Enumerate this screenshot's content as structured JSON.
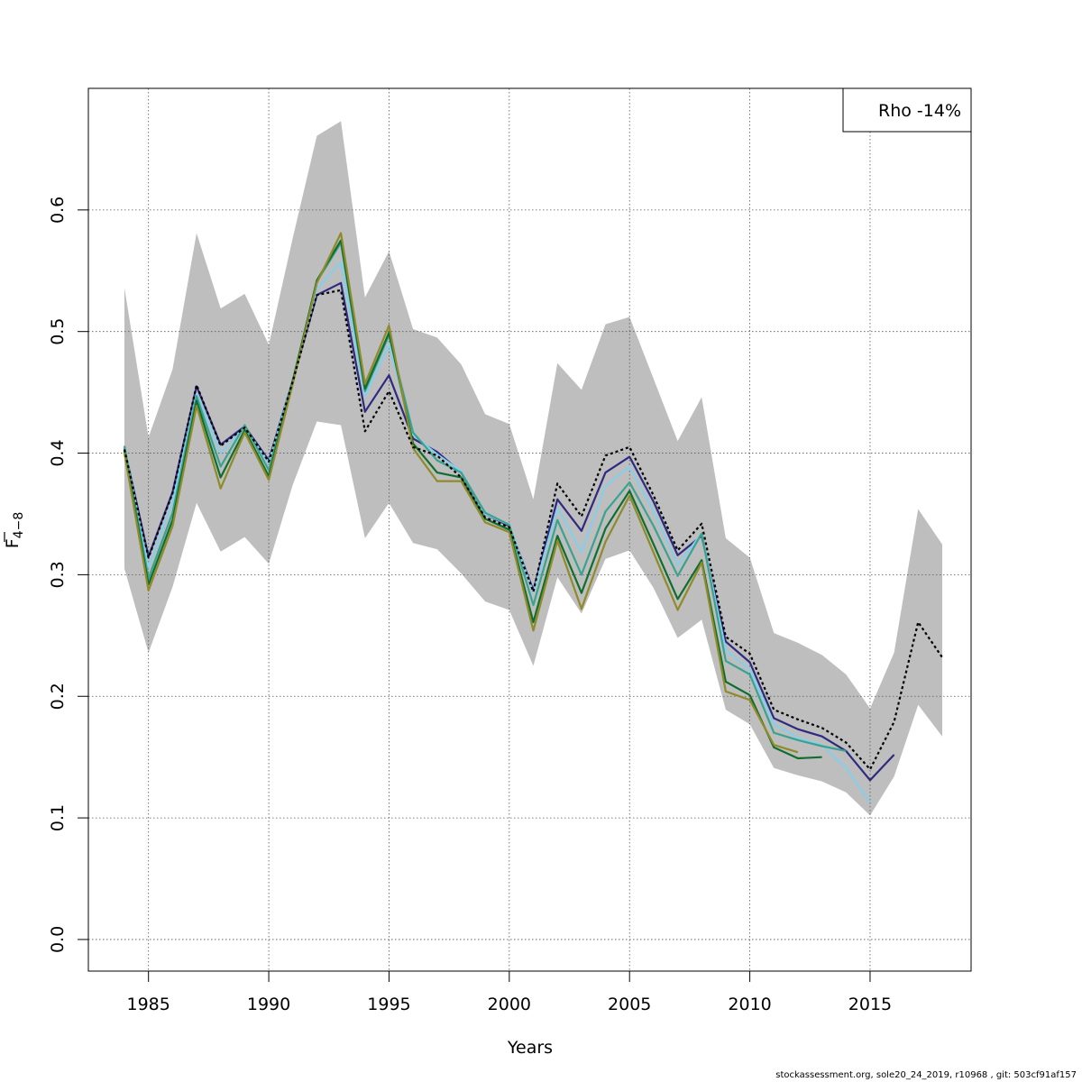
{
  "chart_data": {
    "type": "line",
    "xlabel": "Years",
    "ylabel_main": "F",
    "ylabel_sub": "4−8",
    "xlim": [
      1982.5,
      2019.2
    ],
    "ylim": [
      -0.026,
      0.7
    ],
    "x_ticks": [
      1985,
      1990,
      1995,
      2000,
      2005,
      2010,
      2015
    ],
    "y_ticks": [
      0.0,
      0.1,
      0.2,
      0.3,
      0.4,
      0.5,
      0.6
    ],
    "y_tick_labels": [
      "0.0",
      "0.1",
      "0.2",
      "0.3",
      "0.4",
      "0.5",
      "0.6"
    ],
    "grid": true,
    "legend_text": "Rho -14%",
    "legend_position": "top-right",
    "ci_band": {
      "color": "#bebebe",
      "x": [
        1984,
        1985,
        1986,
        1987,
        1988,
        1989,
        1990,
        1991,
        1992,
        1993,
        1994,
        1995,
        1996,
        1997,
        1998,
        1999,
        2000,
        2001,
        2002,
        2003,
        2004,
        2005,
        2006,
        2007,
        2008,
        2009,
        2010,
        2011,
        2012,
        2013,
        2014,
        2015,
        2016,
        2017,
        2018
      ],
      "upper": [
        0.536,
        0.413,
        0.469,
        0.581,
        0.519,
        0.531,
        0.489,
        0.577,
        0.661,
        0.673,
        0.528,
        0.566,
        0.502,
        0.495,
        0.473,
        0.432,
        0.424,
        0.362,
        0.474,
        0.452,
        0.506,
        0.512,
        0.461,
        0.41,
        0.446,
        0.33,
        0.314,
        0.252,
        0.244,
        0.234,
        0.218,
        0.19,
        0.236,
        0.354,
        0.325
      ],
      "lower": [
        0.305,
        0.236,
        0.29,
        0.359,
        0.319,
        0.331,
        0.309,
        0.374,
        0.426,
        0.423,
        0.33,
        0.359,
        0.326,
        0.321,
        0.301,
        0.278,
        0.271,
        0.225,
        0.298,
        0.268,
        0.313,
        0.32,
        0.289,
        0.248,
        0.263,
        0.189,
        0.177,
        0.141,
        0.135,
        0.13,
        0.121,
        0.102,
        0.134,
        0.193,
        0.167
      ]
    },
    "series": [
      {
        "color": "#000000",
        "dashed": true,
        "start": 1984,
        "values": [
          0.403,
          0.314,
          0.367,
          0.456,
          0.406,
          0.421,
          0.393,
          0.459,
          0.53,
          0.534,
          0.418,
          0.451,
          0.405,
          0.398,
          0.38,
          0.347,
          0.339,
          0.286,
          0.375,
          0.348,
          0.398,
          0.405,
          0.365,
          0.32,
          0.342,
          0.249,
          0.235,
          0.189,
          0.181,
          0.174,
          0.162,
          0.14,
          0.179,
          0.261,
          0.232
        ]
      },
      {
        "color": "#2e2a80",
        "dashed": false,
        "start": 1984,
        "values": [
          0.404,
          0.315,
          0.368,
          0.455,
          0.407,
          0.422,
          0.394,
          0.46,
          0.53,
          0.54,
          0.434,
          0.464,
          0.412,
          0.401,
          0.384,
          0.35,
          0.34,
          0.287,
          0.362,
          0.336,
          0.384,
          0.397,
          0.36,
          0.316,
          0.332,
          0.245,
          0.228,
          0.182,
          0.173,
          0.167,
          0.155,
          0.131,
          0.152
        ]
      },
      {
        "color": "#87ceeb",
        "dashed": false,
        "start": 1984,
        "values": [
          0.405,
          0.306,
          0.36,
          0.449,
          0.4,
          0.421,
          0.392,
          0.46,
          0.535,
          0.557,
          0.447,
          0.489,
          0.415,
          0.399,
          0.385,
          0.35,
          0.341,
          0.285,
          0.355,
          0.319,
          0.373,
          0.389,
          0.352,
          0.308,
          0.334,
          0.238,
          0.222,
          0.177,
          0.166,
          0.16,
          0.141,
          0.113
        ]
      },
      {
        "color": "#3aa38f",
        "dashed": false,
        "start": 1984,
        "values": [
          0.406,
          0.297,
          0.351,
          0.447,
          0.389,
          0.423,
          0.386,
          0.46,
          0.541,
          0.573,
          0.451,
          0.497,
          0.417,
          0.394,
          0.384,
          0.351,
          0.341,
          0.275,
          0.345,
          0.3,
          0.352,
          0.376,
          0.34,
          0.299,
          0.334,
          0.229,
          0.218,
          0.17,
          0.164,
          0.159,
          0.155
        ]
      },
      {
        "color": "#0f6e2e",
        "dashed": false,
        "start": 1984,
        "values": [
          0.402,
          0.292,
          0.345,
          0.443,
          0.38,
          0.419,
          0.381,
          0.459,
          0.542,
          0.575,
          0.453,
          0.499,
          0.408,
          0.384,
          0.38,
          0.346,
          0.337,
          0.261,
          0.332,
          0.285,
          0.338,
          0.369,
          0.325,
          0.28,
          0.312,
          0.212,
          0.201,
          0.158,
          0.149,
          0.15
        ]
      },
      {
        "color": "#8f8a2a",
        "dashed": false,
        "start": 1984,
        "values": [
          0.4,
          0.287,
          0.34,
          0.439,
          0.371,
          0.417,
          0.378,
          0.457,
          0.54,
          0.581,
          0.457,
          0.505,
          0.404,
          0.377,
          0.377,
          0.343,
          0.335,
          0.254,
          0.328,
          0.272,
          0.327,
          0.365,
          0.318,
          0.271,
          0.31,
          0.204,
          0.197,
          0.16,
          0.154
        ]
      }
    ]
  },
  "footer_text": "stockassessment.org, sole20_24_2019, r10968 , git: 503cf91af157"
}
